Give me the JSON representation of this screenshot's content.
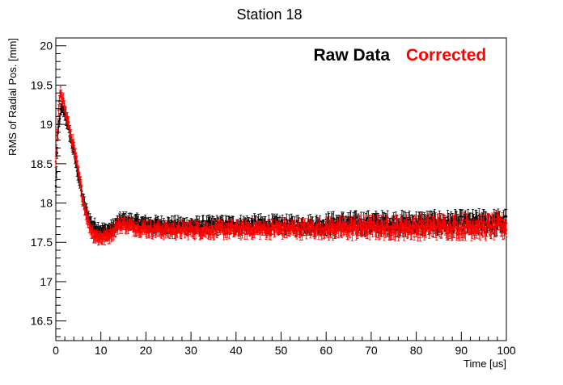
{
  "chart_data": {
    "type": "scatter",
    "title": "Station 18",
    "xlabel": "Time [us]",
    "ylabel": "RMS of Radial Pos. [mm]",
    "xlim": [
      0,
      100
    ],
    "ylim": [
      16.25,
      20.1
    ],
    "x_ticks": [
      0,
      10,
      20,
      30,
      40,
      50,
      60,
      70,
      80,
      90,
      100
    ],
    "x_tick_labels": [
      "0",
      "10",
      "20",
      "30",
      "40",
      "50",
      "60",
      "70",
      "80",
      "90",
      "100"
    ],
    "y_ticks": [
      16.5,
      17,
      17.5,
      18,
      18.5,
      19,
      19.5,
      20
    ],
    "y_tick_labels": [
      "16.5",
      "17",
      "17.5",
      "18",
      "18.5",
      "19",
      "19.5",
      "20"
    ],
    "grid": false,
    "error_bar_halfwidth": 0.07,
    "series": [
      {
        "name": "Raw Data",
        "color": "#000000",
        "x": [
          0,
          0.5,
          1,
          1.5,
          2,
          3,
          4,
          5,
          6,
          7,
          8,
          9,
          10,
          11,
          12,
          13,
          14,
          15,
          17,
          20,
          25,
          30,
          35,
          40,
          45,
          50,
          55,
          60,
          65,
          70,
          75,
          80,
          85,
          90,
          95,
          100
        ],
        "values": [
          18.2,
          18.9,
          19.15,
          19.2,
          19.15,
          18.9,
          18.65,
          18.35,
          18.05,
          17.85,
          17.72,
          17.68,
          17.65,
          17.64,
          17.66,
          17.7,
          17.76,
          17.78,
          17.76,
          17.73,
          17.72,
          17.71,
          17.72,
          17.72,
          17.73,
          17.72,
          17.72,
          17.73,
          17.74,
          17.74,
          17.74,
          17.74,
          17.74,
          17.74,
          17.75,
          17.75
        ]
      },
      {
        "name": "Corrected",
        "color": "#ff0000",
        "x": [
          0,
          0.5,
          1,
          1.5,
          2,
          3,
          4,
          5,
          6,
          7,
          8,
          9,
          10,
          11,
          12,
          13,
          14,
          15,
          17,
          20,
          25,
          30,
          35,
          40,
          45,
          50,
          55,
          60,
          65,
          70,
          75,
          80,
          85,
          90,
          95,
          100
        ],
        "values": [
          18.5,
          19.05,
          19.45,
          19.35,
          19.2,
          18.95,
          18.7,
          18.4,
          18.05,
          17.8,
          17.63,
          17.57,
          17.56,
          17.57,
          17.6,
          17.66,
          17.72,
          17.73,
          17.7,
          17.67,
          17.65,
          17.66,
          17.66,
          17.66,
          17.67,
          17.67,
          17.67,
          17.68,
          17.68,
          17.69,
          17.69,
          17.69,
          17.7,
          17.7,
          17.7,
          17.7
        ]
      }
    ]
  }
}
